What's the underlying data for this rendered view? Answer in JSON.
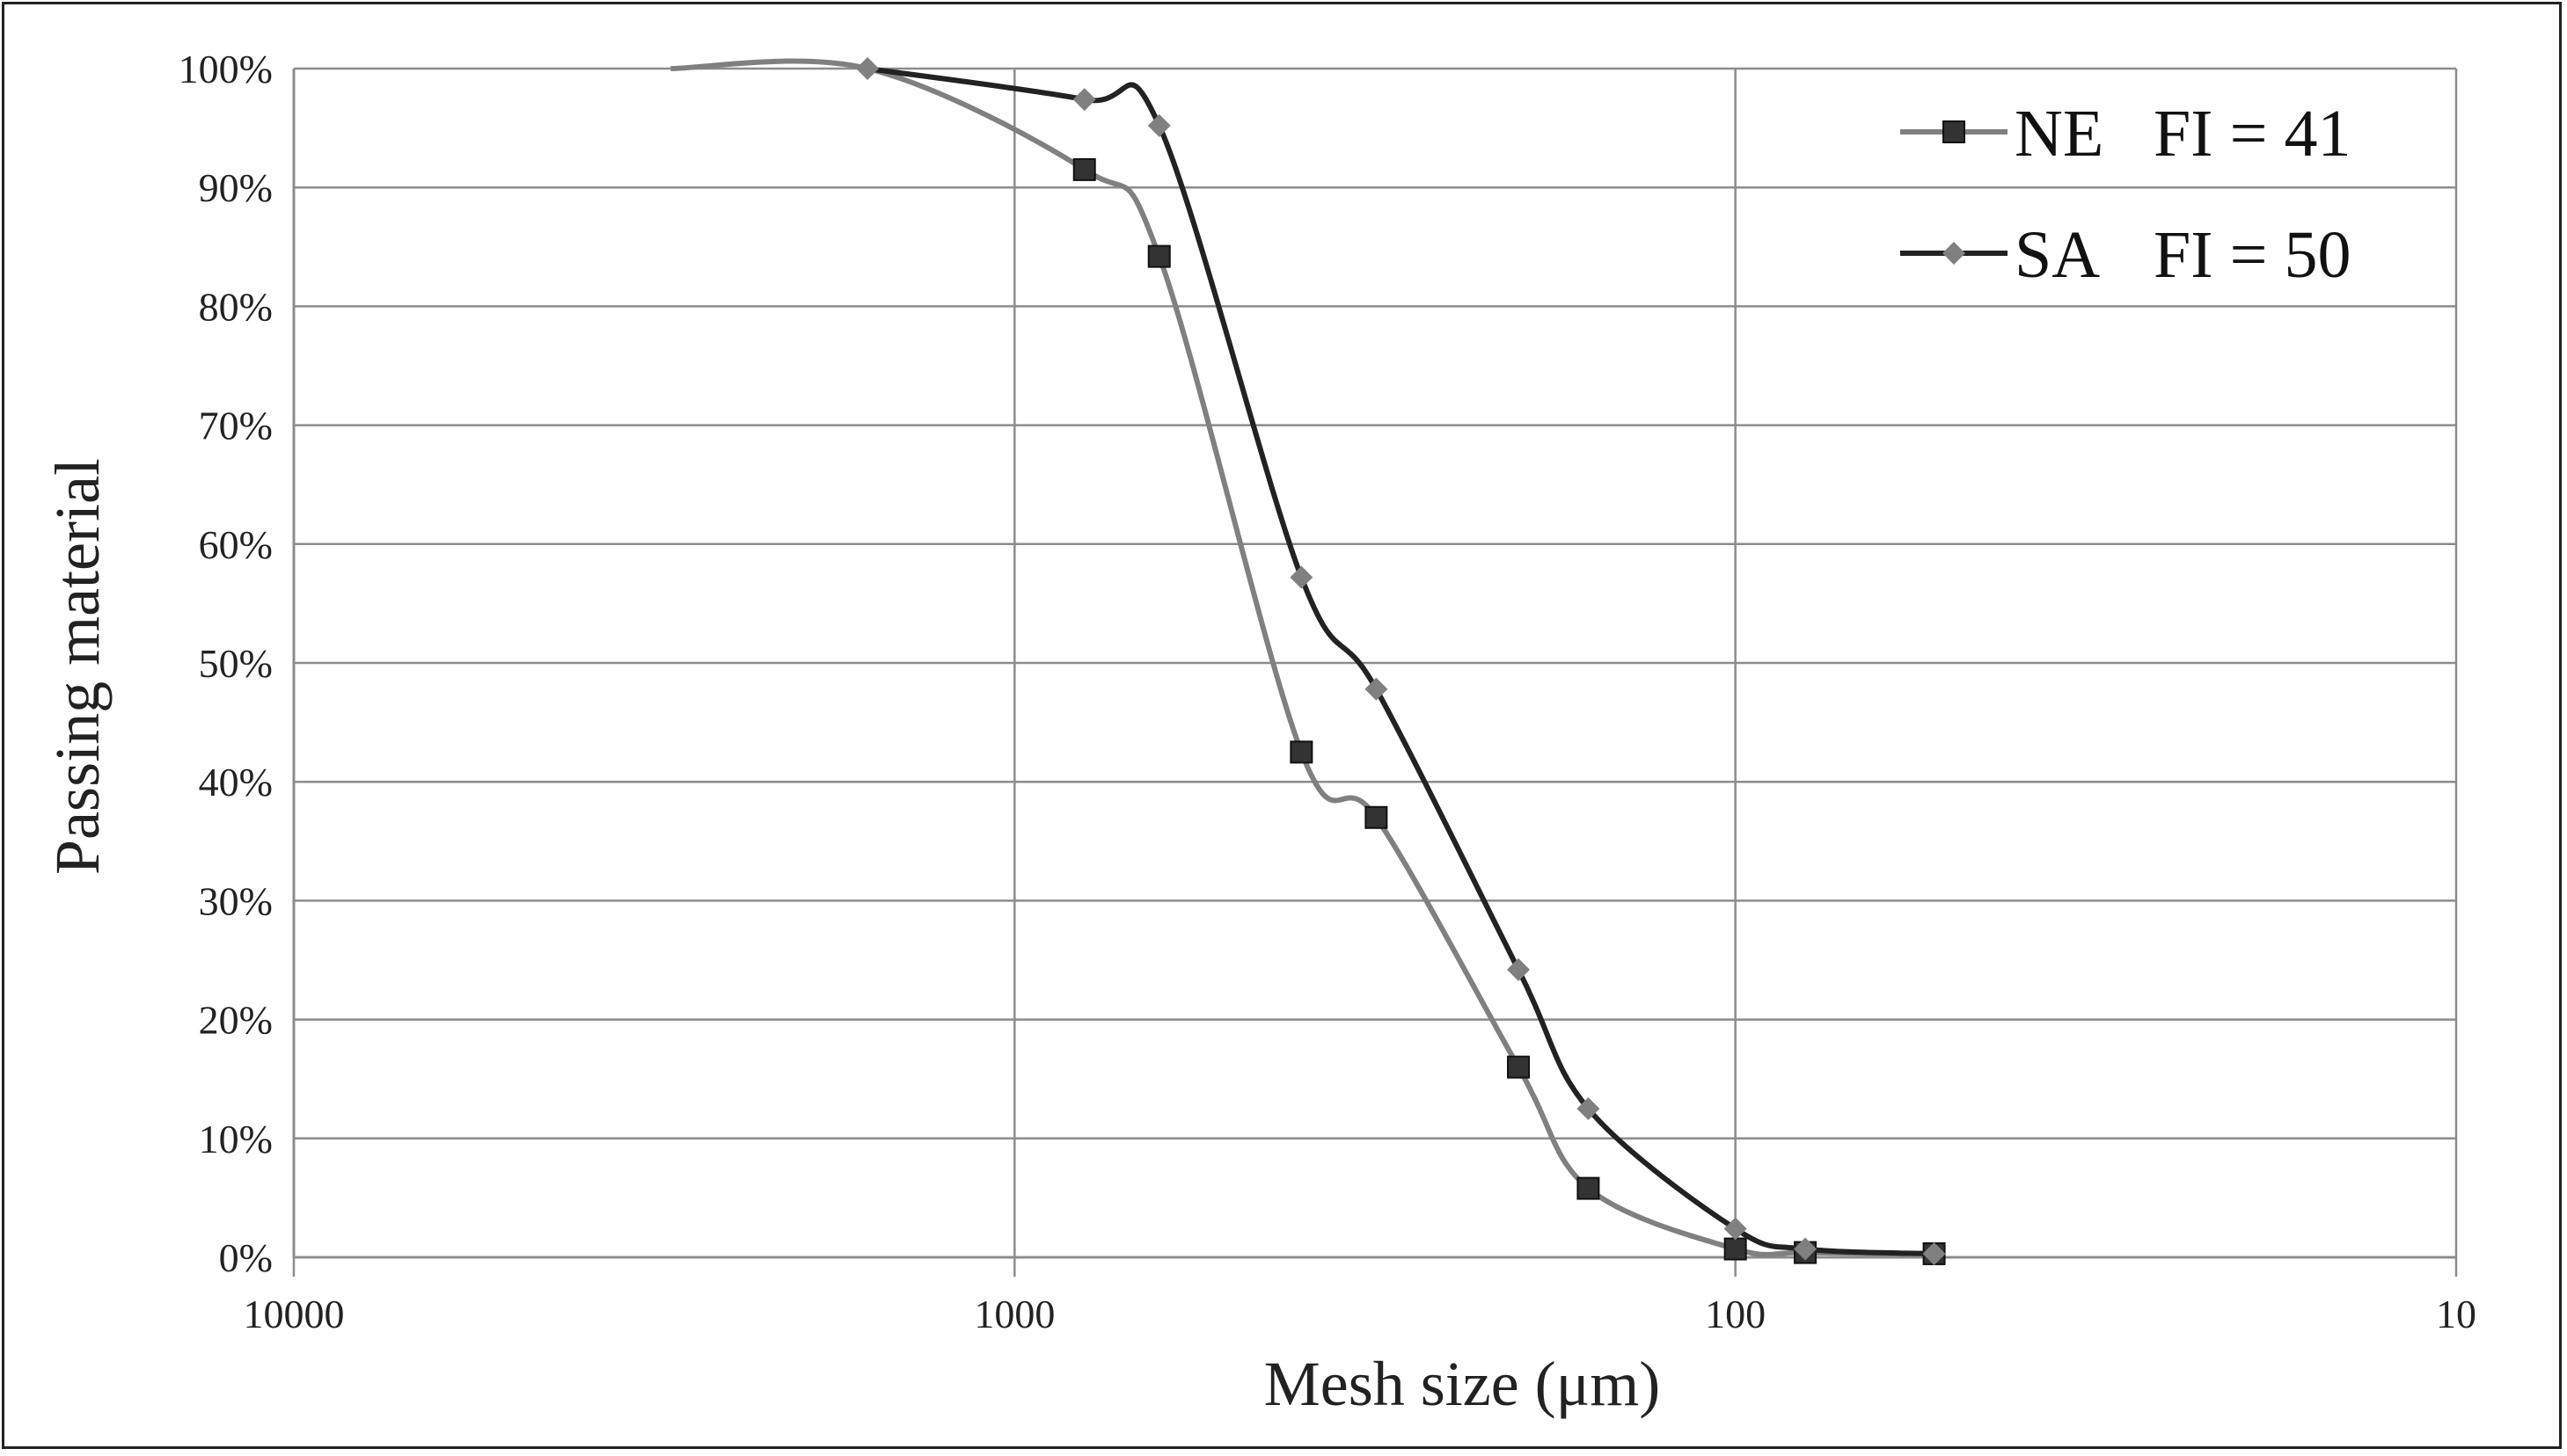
{
  "chart_data": {
    "type": "line",
    "xscale": "log",
    "xreversed": true,
    "xlim": [
      10000,
      10
    ],
    "ylim": [
      0,
      100
    ],
    "xlabel": "Mesh size (μm)",
    "ylabel": "Passing material",
    "x_ticks": [
      10000,
      1000,
      100,
      10
    ],
    "x_tick_labels": [
      "10000",
      "1000",
      "100",
      "10"
    ],
    "y_ticks": [
      0,
      10,
      20,
      30,
      40,
      50,
      60,
      70,
      80,
      90,
      100
    ],
    "y_tick_labels": [
      "0%",
      "10%",
      "20%",
      "30%",
      "40%",
      "50%",
      "60%",
      "70%",
      "80%",
      "90%",
      "100%"
    ],
    "grid": true,
    "legend_position": "top-right",
    "series": [
      {
        "name": "NE",
        "annotation": "FI = 41",
        "marker": "square",
        "line_color": "#808080",
        "marker_color": "#333333",
        "x": [
          3000,
          1600,
          800,
          630,
          400,
          315,
          200,
          160,
          100,
          80,
          53
        ],
        "y": [
          100,
          100,
          91.5,
          84.2,
          42.5,
          37.0,
          16.0,
          5.8,
          0.7,
          0.4,
          0.3
        ]
      },
      {
        "name": "SA",
        "annotation": "FI = 50",
        "marker": "diamond",
        "line_color": "#222222",
        "marker_color": "#808080",
        "x": [
          1600,
          800,
          630,
          400,
          315,
          200,
          160,
          100,
          80,
          53
        ],
        "y": [
          100,
          97.4,
          95.2,
          57.2,
          47.8,
          24.2,
          12.5,
          2.4,
          0.7,
          0.3
        ]
      }
    ]
  }
}
